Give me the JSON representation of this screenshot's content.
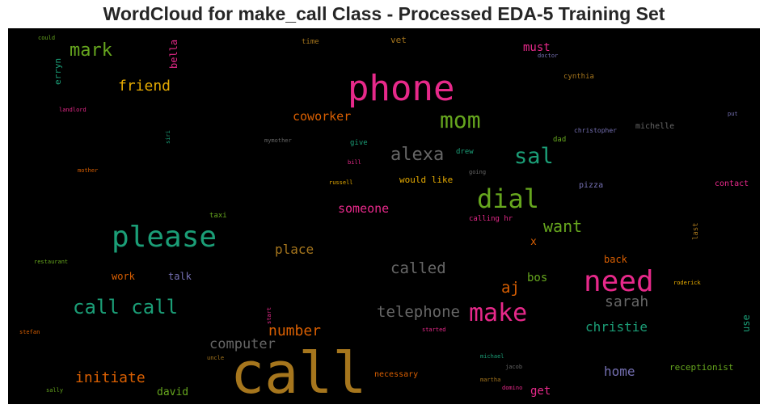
{
  "chart_data": {
    "type": "wordcloud",
    "title": "WordCloud for make_call Class - Processed EDA-5 Training Set",
    "background": "#000000",
    "palette": {
      "magenta": "#e7298a",
      "green": "#66a61e",
      "teal": "#1b9e77",
      "orange": "#d95f02",
      "gold": "#e6ab02",
      "brown": "#a6761d",
      "purple": "#7570b3",
      "gray": "#666666"
    },
    "words": [
      {
        "text": "call",
        "color": "#a6761d",
        "weight": 100
      },
      {
        "text": "phone",
        "color": "#e7298a",
        "weight": 62
      },
      {
        "text": "please",
        "color": "#1b9e77",
        "weight": 50
      },
      {
        "text": "need",
        "color": "#e7298a",
        "weight": 50
      },
      {
        "text": "dial",
        "color": "#66a61e",
        "weight": 45
      },
      {
        "text": "make",
        "color": "#e7298a",
        "weight": 42
      },
      {
        "text": "mom",
        "color": "#66a61e",
        "weight": 40
      },
      {
        "text": "sal",
        "color": "#1b9e77",
        "weight": 38
      },
      {
        "text": "call call",
        "color": "#1b9e77",
        "weight": 34
      },
      {
        "text": "alexa",
        "color": "#666666",
        "weight": 30
      },
      {
        "text": "mark",
        "color": "#66a61e",
        "weight": 30
      },
      {
        "text": "want",
        "color": "#66a61e",
        "weight": 28
      },
      {
        "text": "called",
        "color": "#666666",
        "weight": 26
      },
      {
        "text": "aj",
        "color": "#d95f02",
        "weight": 26
      },
      {
        "text": "telephone",
        "color": "#666666",
        "weight": 26
      },
      {
        "text": "sarah",
        "color": "#666666",
        "weight": 25
      },
      {
        "text": "friend",
        "color": "#e6ab02",
        "weight": 24
      },
      {
        "text": "number",
        "color": "#d95f02",
        "weight": 24
      },
      {
        "text": "initiate",
        "color": "#d95f02",
        "weight": 24
      },
      {
        "text": "computer",
        "color": "#666666",
        "weight": 23
      },
      {
        "text": "christie",
        "color": "#1b9e77",
        "weight": 22
      },
      {
        "text": "place",
        "color": "#a6761d",
        "weight": 21
      },
      {
        "text": "coworker",
        "color": "#d95f02",
        "weight": 20
      },
      {
        "text": "someone",
        "color": "#e7298a",
        "weight": 20
      },
      {
        "text": "home",
        "color": "#7570b3",
        "weight": 20
      },
      {
        "text": "must",
        "color": "#e7298a",
        "weight": 18
      },
      {
        "text": "bos",
        "color": "#66a61e",
        "weight": 18
      },
      {
        "text": "get",
        "color": "#e7298a",
        "weight": 18
      },
      {
        "text": "x",
        "color": "#d95f02",
        "weight": 17
      },
      {
        "text": "david",
        "color": "#66a61e",
        "weight": 16
      },
      {
        "text": "work",
        "color": "#d95f02",
        "weight": 15
      },
      {
        "text": "talk",
        "color": "#7570b3",
        "weight": 15
      },
      {
        "text": "back",
        "color": "#d95f02",
        "weight": 15
      },
      {
        "text": "use",
        "color": "#1b9e77",
        "weight": 14
      },
      {
        "text": "bella",
        "color": "#e7298a",
        "weight": 14
      },
      {
        "text": "vet",
        "color": "#a6761d",
        "weight": 14
      },
      {
        "text": "erryn",
        "color": "#1b9e77",
        "weight": 13
      },
      {
        "text": "receptionist",
        "color": "#66a61e",
        "weight": 13
      },
      {
        "text": "would like",
        "color": "#e6ab02",
        "weight": 13
      },
      {
        "text": "pizza",
        "color": "#7570b3",
        "weight": 12
      },
      {
        "text": "necessary",
        "color": "#d95f02",
        "weight": 12
      },
      {
        "text": "time",
        "color": "#a6761d",
        "weight": 11
      },
      {
        "text": "cynthia",
        "color": "#a6761d",
        "weight": 11
      },
      {
        "text": "michelle",
        "color": "#666666",
        "weight": 11
      },
      {
        "text": "give",
        "color": "#1b9e77",
        "weight": 11
      },
      {
        "text": "drew",
        "color": "#1b9e77",
        "weight": 11
      },
      {
        "text": "dad",
        "color": "#66a61e",
        "weight": 11
      },
      {
        "text": "taxi",
        "color": "#66a61e",
        "weight": 11
      },
      {
        "text": "calling hr",
        "color": "#e7298a",
        "weight": 11
      },
      {
        "text": "contact",
        "color": "#e7298a",
        "weight": 11
      },
      {
        "text": "last",
        "color": "#a6761d",
        "weight": 11
      },
      {
        "text": "christopher",
        "color": "#7570b3",
        "weight": 9
      },
      {
        "text": "landlord",
        "color": "#e7298a",
        "weight": 8
      },
      {
        "text": "could",
        "color": "#66a61e",
        "weight": 7
      },
      {
        "text": "doctor",
        "color": "#7570b3",
        "weight": 7
      },
      {
        "text": "mymother",
        "color": "#666666",
        "weight": 7
      },
      {
        "text": "bill",
        "color": "#e7298a",
        "weight": 7
      },
      {
        "text": "going",
        "color": "#666666",
        "weight": 7
      },
      {
        "text": "russell",
        "color": "#e6ab02",
        "weight": 7
      },
      {
        "text": "mother",
        "color": "#d95f02",
        "weight": 7
      },
      {
        "text": "siri",
        "color": "#1b9e77",
        "weight": 7
      },
      {
        "text": "put",
        "color": "#7570b3",
        "weight": 7
      },
      {
        "text": "restaurant",
        "color": "#66a61e",
        "weight": 7
      },
      {
        "text": "roderick",
        "color": "#e6ab02",
        "weight": 7
      },
      {
        "text": "start",
        "color": "#e7298a",
        "weight": 7
      },
      {
        "text": "started",
        "color": "#e7298a",
        "weight": 7
      },
      {
        "text": "stefan",
        "color": "#d95f02",
        "weight": 7
      },
      {
        "text": "uncle",
        "color": "#a6761d",
        "weight": 7
      },
      {
        "text": "michael",
        "color": "#1b9e77",
        "weight": 7
      },
      {
        "text": "jacob",
        "color": "#666666",
        "weight": 7
      },
      {
        "text": "martha",
        "color": "#a6761d",
        "weight": 7
      },
      {
        "text": "domino",
        "color": "#e7298a",
        "weight": 7
      },
      {
        "text": "sally",
        "color": "#66a61e",
        "weight": 7
      }
    ]
  }
}
